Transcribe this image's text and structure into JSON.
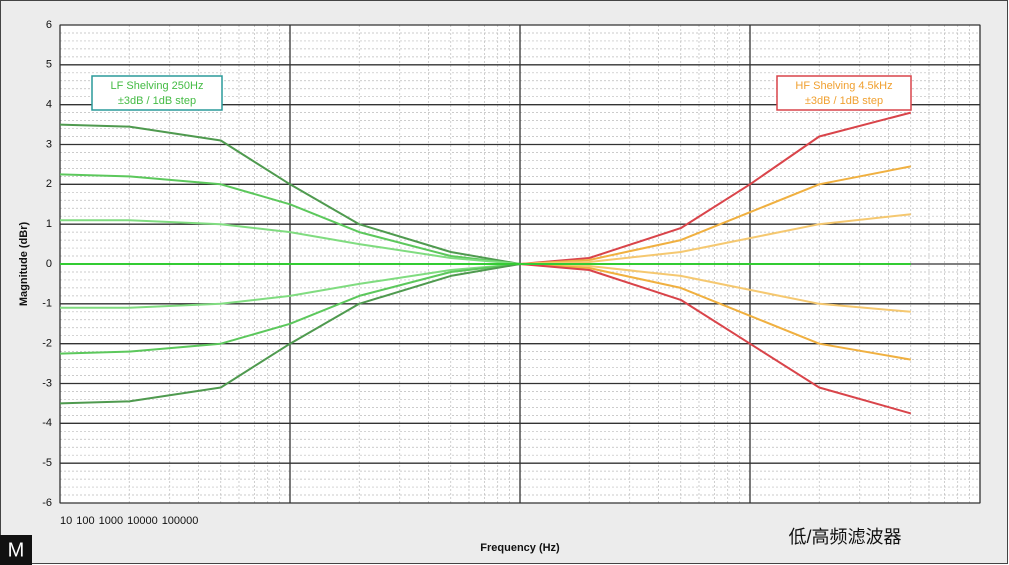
{
  "chart_data": {
    "type": "line",
    "ylabel": "Magnitude (dBr)",
    "xlabel": "Frequency (Hz)",
    "caption": "低/高频滤波器",
    "logo": "M",
    "xlog": true,
    "grid": true,
    "xlim": [
      10,
      100000
    ],
    "xticks": [
      10,
      100,
      1000,
      10000,
      100000
    ],
    "ylim": [
      -6,
      6
    ],
    "yticks": [
      -6,
      -5,
      -4,
      -3,
      -2,
      -1,
      0,
      1,
      2,
      3,
      4,
      5,
      6
    ],
    "x": [
      10,
      20,
      50,
      100,
      200,
      500,
      1000,
      2000,
      5000,
      10000,
      20000,
      50000
    ],
    "series": [
      {
        "color": "#4f9a4f",
        "values": [
          3.5,
          3.45,
          3.1,
          2.0,
          1.0,
          0.3,
          0,
          null,
          null,
          null,
          null,
          null
        ]
      },
      {
        "color": "#5cc85c",
        "values": [
          2.25,
          2.2,
          2.0,
          1.5,
          0.8,
          0.2,
          0,
          null,
          null,
          null,
          null,
          null
        ]
      },
      {
        "color": "#80dc80",
        "values": [
          1.1,
          1.1,
          1.0,
          0.8,
          0.5,
          0.15,
          0,
          null,
          null,
          null,
          null,
          null
        ]
      },
      {
        "color": "#80dc80",
        "values": [
          -1.1,
          -1.1,
          -1.0,
          -0.8,
          -0.5,
          -0.15,
          0,
          null,
          null,
          null,
          null,
          null
        ]
      },
      {
        "color": "#5cc85c",
        "values": [
          -2.25,
          -2.2,
          -2.0,
          -1.5,
          -0.8,
          -0.2,
          0,
          null,
          null,
          null,
          null,
          null
        ]
      },
      {
        "color": "#4f9a4f",
        "values": [
          -3.5,
          -3.45,
          -3.1,
          -2.0,
          -1.0,
          -0.3,
          0,
          null,
          null,
          null,
          null,
          null
        ]
      },
      {
        "color": "#d9444a",
        "values": [
          null,
          null,
          null,
          null,
          null,
          null,
          0,
          0.15,
          0.9,
          2.0,
          3.2,
          3.8
        ]
      },
      {
        "color": "#f0b040",
        "values": [
          null,
          null,
          null,
          null,
          null,
          null,
          0,
          0.1,
          0.6,
          1.3,
          2.0,
          2.45
        ]
      },
      {
        "color": "#f5c870",
        "values": [
          null,
          null,
          null,
          null,
          null,
          null,
          0,
          0.05,
          0.3,
          0.65,
          1.0,
          1.25
        ]
      },
      {
        "color": "#f5c870",
        "values": [
          null,
          null,
          null,
          null,
          null,
          null,
          0,
          -0.05,
          -0.3,
          -0.65,
          -1.0,
          -1.2
        ]
      },
      {
        "color": "#f0b040",
        "values": [
          null,
          null,
          null,
          null,
          null,
          null,
          0,
          -0.1,
          -0.6,
          -1.3,
          -2.0,
          -2.4
        ]
      },
      {
        "color": "#d9444a",
        "values": [
          null,
          null,
          null,
          null,
          null,
          null,
          0,
          -0.15,
          -0.9,
          -2.0,
          -3.1,
          -3.75
        ]
      },
      {
        "color": "#33cc33",
        "values": [
          0,
          0,
          0,
          0,
          0,
          0,
          0,
          0,
          0,
          0,
          0,
          0
        ]
      }
    ],
    "annotations": [
      {
        "lines": [
          "LF Shelving  250Hz",
          "±3dB / 1dB step"
        ],
        "color": "#44bb44",
        "border": "#2a9a9a"
      },
      {
        "lines": [
          "HF Shelving 4.5kHz",
          "±3dB / 1dB step"
        ],
        "color": "#f0a030",
        "border": "#d9444a"
      }
    ]
  }
}
